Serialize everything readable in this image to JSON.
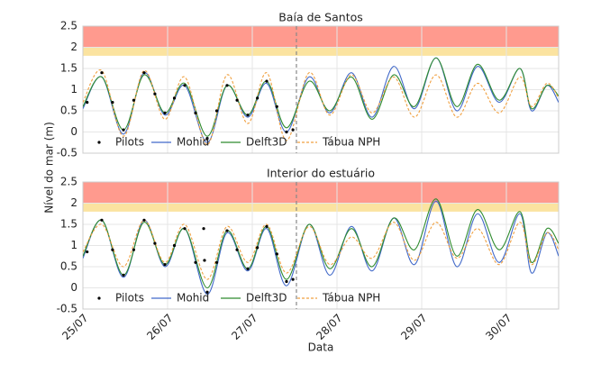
{
  "figure": {
    "xlabel": "Data",
    "ylabel": "Nível do mar (m)"
  },
  "chart_data": [
    {
      "type": "line",
      "title": "Baía de Santos",
      "xlim": [
        0,
        5.617
      ],
      "ylim": [
        -0.5,
        2.5
      ],
      "xticks": [
        0,
        1,
        2,
        3,
        4,
        5
      ],
      "yticks": [
        -0.5,
        0,
        0.5,
        1,
        1.5,
        2,
        2.5
      ],
      "grid": true,
      "legend": "lower left",
      "vline_x": 2.521,
      "bands": [
        {
          "from": 2,
          "to": 2.5,
          "color": "#ff9a8e"
        },
        {
          "from": 1.8,
          "to": 2,
          "color": "#fbe3a0"
        }
      ],
      "x": [
        0,
        0.223,
        0.479,
        0.723,
        0.968,
        1.202,
        1.468,
        1.702,
        1.947,
        2.17,
        2.404,
        2.67,
        2.915,
        3.17,
        3.415,
        3.67,
        3.915,
        4.17,
        4.415,
        4.66,
        4.915,
        5.16,
        5.298,
        5.479,
        5.617
      ],
      "scatter": {
        "name": "Pilots",
        "color": "#000000",
        "x": [
          0.05,
          0.223,
          0.35,
          0.479,
          0.6,
          0.723,
          0.85,
          0.968,
          1.08,
          1.202,
          1.33,
          1.468,
          1.58,
          1.702,
          1.82,
          1.947,
          2.06,
          2.17,
          2.29,
          2.404,
          2.48
        ],
        "values": [
          0.7,
          1.4,
          0.7,
          0.05,
          0.75,
          1.4,
          0.9,
          0.45,
          0.8,
          1.1,
          0.45,
          -0.15,
          0.5,
          1.1,
          0.75,
          0.4,
          0.8,
          1.2,
          0.6,
          0.0,
          0.05
        ]
      },
      "series": [
        {
          "name": "Mohid",
          "color": "#4169c9",
          "values": [
            0.55,
            1.3,
            -0.05,
            1.4,
            0.4,
            1.1,
            -0.25,
            1.1,
            0.35,
            1.15,
            0.0,
            1.3,
            0.45,
            1.4,
            0.35,
            1.55,
            0.55,
            1.75,
            0.5,
            1.55,
            0.7,
            1.5,
            0.5,
            1.1,
            0.7
          ]
        },
        {
          "name": "Delft3D",
          "color": "#2e8b2e",
          "values": [
            0.6,
            1.3,
            0.05,
            1.35,
            0.45,
            1.15,
            -0.1,
            1.1,
            0.4,
            1.2,
            0.1,
            1.2,
            0.5,
            1.3,
            0.3,
            1.35,
            0.6,
            1.75,
            0.6,
            1.6,
            0.75,
            1.5,
            0.55,
            1.1,
            0.85
          ]
        },
        {
          "name": "Tábua NPH",
          "color": "#f0a040",
          "dashed": true,
          "values": [
            0.7,
            1.45,
            -0.1,
            1.45,
            0.3,
            1.3,
            -0.3,
            1.35,
            0.2,
            1.4,
            -0.2,
            1.4,
            0.4,
            1.35,
            0.45,
            1.3,
            0.35,
            1.35,
            0.35,
            1.15,
            0.45,
            1.3,
            0.6,
            1.15,
            0.8
          ]
        }
      ]
    },
    {
      "type": "line",
      "title": "Interior do estuário",
      "xlim": [
        0,
        5.617
      ],
      "ylim": [
        -0.5,
        2.5
      ],
      "xticks": [
        {
          "value": 0,
          "label": "25/07"
        },
        {
          "value": 1,
          "label": "26/07"
        },
        {
          "value": 2,
          "label": "27/07"
        },
        {
          "value": 3,
          "label": "28/07"
        },
        {
          "value": 4,
          "label": "29/07"
        },
        {
          "value": 5,
          "label": "30/07"
        }
      ],
      "yticks": [
        -0.5,
        0,
        0.5,
        1,
        1.5,
        2,
        2.5
      ],
      "grid": true,
      "legend": "lower left",
      "vline_x": 2.521,
      "bands": [
        {
          "from": 2,
          "to": 2.5,
          "color": "#ff9a8e"
        },
        {
          "from": 1.8,
          "to": 2,
          "color": "#fbe3a0"
        }
      ],
      "x": [
        0,
        0.223,
        0.479,
        0.723,
        0.968,
        1.202,
        1.468,
        1.702,
        1.947,
        2.17,
        2.404,
        2.67,
        2.915,
        3.17,
        3.415,
        3.67,
        3.915,
        4.17,
        4.415,
        4.66,
        4.915,
        5.16,
        5.298,
        5.479,
        5.617
      ],
      "scatter": {
        "name": "Pilots",
        "color": "#000000",
        "x": [
          0.05,
          0.223,
          0.35,
          0.479,
          0.6,
          0.723,
          0.85,
          0.968,
          1.08,
          1.202,
          1.33,
          1.468,
          1.58,
          1.702,
          1.82,
          1.947,
          2.06,
          2.17,
          2.29,
          2.404,
          2.48,
          1.426,
          1.436
        ],
        "values": [
          0.85,
          1.6,
          0.9,
          0.3,
          0.9,
          1.6,
          1.05,
          0.55,
          1.0,
          1.4,
          0.6,
          -0.1,
          0.6,
          1.35,
          0.9,
          0.45,
          0.95,
          1.45,
          0.8,
          0.15,
          0.2,
          1.4,
          0.65
        ]
      },
      "series": [
        {
          "name": "Mohid",
          "color": "#4169c9",
          "values": [
            0.7,
            1.6,
            0.25,
            1.6,
            0.5,
            1.4,
            -0.15,
            1.3,
            0.4,
            1.4,
            0.05,
            1.5,
            0.3,
            1.45,
            0.4,
            1.65,
            0.55,
            2.05,
            0.5,
            1.75,
            0.6,
            1.75,
            0.35,
            1.3,
            0.75
          ]
        },
        {
          "name": "Delft3D",
          "color": "#2e8b2e",
          "values": [
            0.75,
            1.6,
            0.3,
            1.55,
            0.55,
            1.4,
            0.0,
            1.35,
            0.45,
            1.45,
            0.2,
            1.5,
            0.45,
            1.4,
            0.5,
            1.65,
            0.9,
            2.1,
            0.75,
            1.85,
            0.9,
            1.8,
            0.6,
            1.4,
            1.05
          ]
        },
        {
          "name": "Tábua NPH",
          "color": "#f0a040",
          "dashed": true,
          "values": [
            0.85,
            1.5,
            0.5,
            1.6,
            0.6,
            1.5,
            0.2,
            1.45,
            0.6,
            1.5,
            0.35,
            1.45,
            0.55,
            1.2,
            0.7,
            1.55,
            0.65,
            1.55,
            0.7,
            1.4,
            0.55,
            1.55,
            0.55,
            1.3,
            0.9
          ]
        }
      ]
    }
  ]
}
